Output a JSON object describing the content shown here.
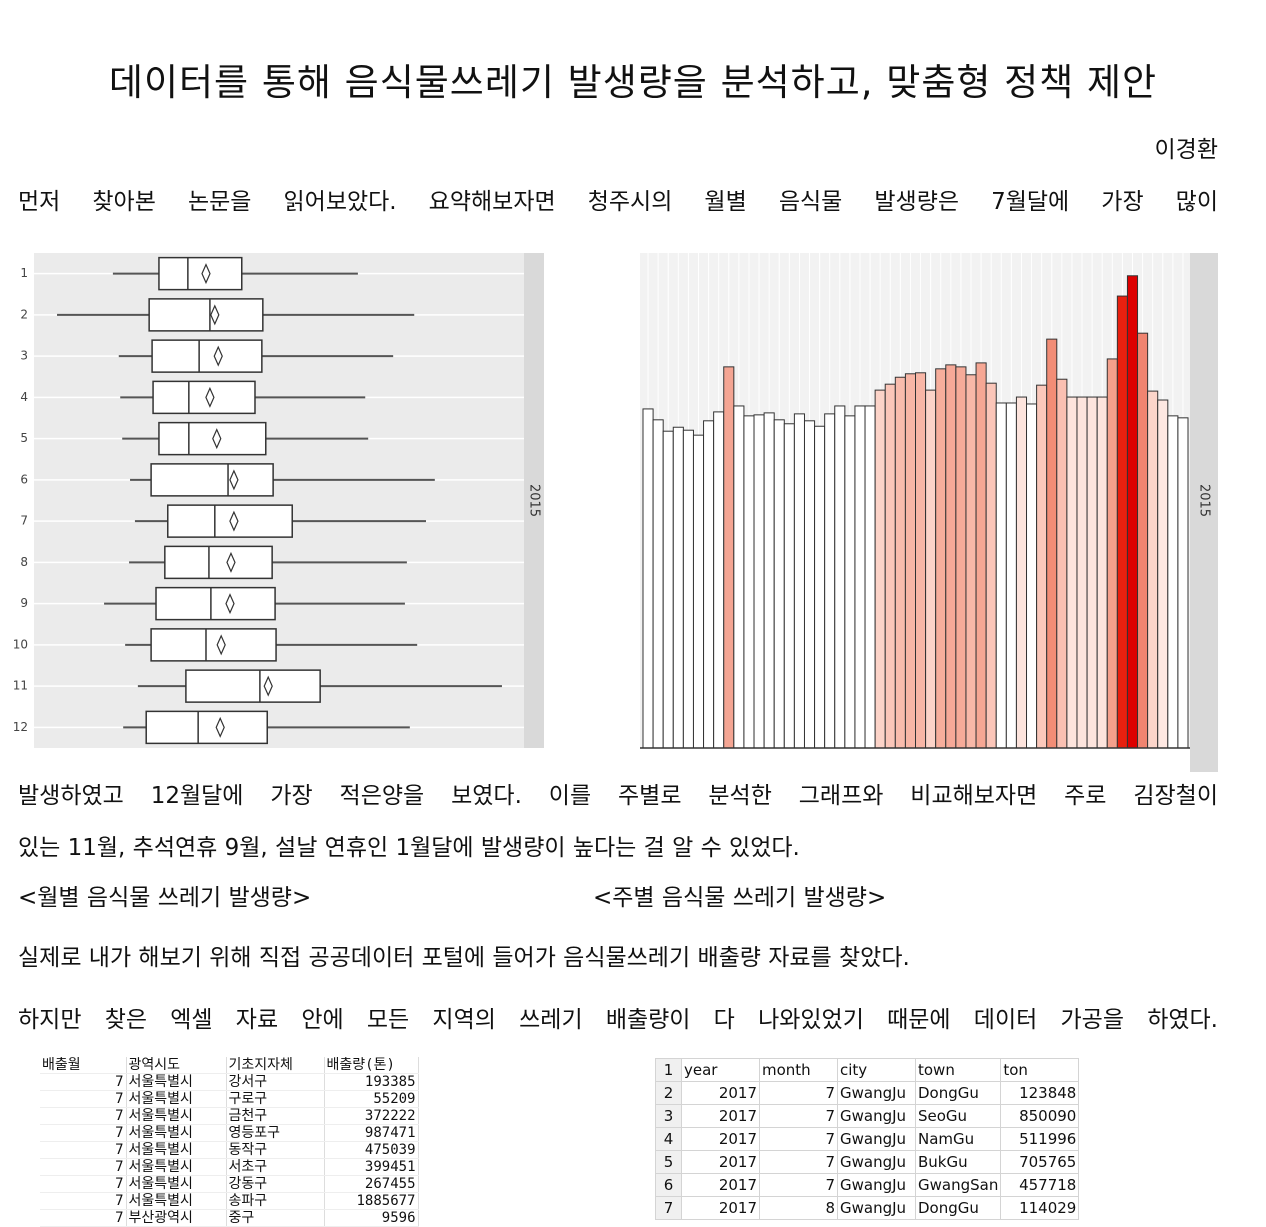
{
  "title": "데이터를 통해 음식물쓰레기 발생량을 분석하고, 맞춤형 정책 제안",
  "author": "이경환",
  "lines": [
    "먼저 찾아본 논문을 읽어보았다. 요약해보자면 청주시의 월별 음식물 발생량은 7월달에 가장 많이",
    "발생하였고 12월달에 가장 적은양을 보였다. 이를 주별로 분석한 그래프와 비교해보자면 주로 김장철이",
    "있는 11월, 추석연휴 9월, 설날 연휴인 1월달에 발생량이 높다는 걸 알 수 있었다.",
    "실제로 내가 해보기 위해 직접 공공데이터 포털에 들어가 음식물쓰레기 배출량 자료를 찾았다.",
    "하지만 찾은 엑셀 자료 안에 모든 지역의 쓰레기 배출량이 다 나와있었기 때문에 데이터 가공을 하였다."
  ],
  "captions": [
    "<월별 음식물 쓰레기 발생량>",
    "<주별 음식물 쓰레기 발생량>"
  ],
  "chart_data": [
    {
      "type": "box",
      "strip": "2015",
      "categories": [
        "1",
        "2",
        "3",
        "4",
        "5",
        "6",
        "7",
        "8",
        "9",
        "10",
        "11",
        "12"
      ],
      "xlim": [
        0,
        100
      ],
      "min": [
        16.1,
        4.7,
        17.3,
        17.6,
        18.0,
        19.6,
        20.6,
        19.4,
        14.3,
        18.6,
        21.2,
        18.2
      ],
      "q1": [
        25.5,
        23.5,
        24.1,
        24.3,
        25.5,
        23.9,
        27.3,
        26.7,
        24.9,
        23.9,
        31.0,
        22.9
      ],
      "median": [
        31.4,
        35.9,
        33.7,
        31.6,
        31.6,
        39.6,
        36.9,
        35.7,
        36.1,
        35.1,
        46.1,
        33.5
      ],
      "q3": [
        42.4,
        46.7,
        46.5,
        45.1,
        47.3,
        48.8,
        52.7,
        48.6,
        49.2,
        49.4,
        58.4,
        47.6
      ],
      "max": [
        66.1,
        77.6,
        73.3,
        67.6,
        68.2,
        81.8,
        80.0,
        76.1,
        75.7,
        78.2,
        95.5,
        76.7
      ],
      "mean": [
        35.1,
        36.9,
        37.6,
        35.9,
        37.3,
        40.8,
        40.8,
        40.2,
        40.0,
        38.2,
        47.8,
        38.0
      ],
      "color": "#ffffff"
    },
    {
      "type": "bar",
      "strip": "2015",
      "ylim": [
        0,
        100
      ],
      "values": [
        68.5,
        66.3,
        64.0,
        64.8,
        64.2,
        63.2,
        66.1,
        67.9,
        77.0,
        69.1,
        67.1,
        67.3,
        67.7,
        66.3,
        65.5,
        67.5,
        66.1,
        65.0,
        67.5,
        69.1,
        67.1,
        69.1,
        69.1,
        72.3,
        73.5,
        74.9,
        75.6,
        75.8,
        72.3,
        76.6,
        77.4,
        77.0,
        75.4,
        77.8,
        73.7,
        69.7,
        69.7,
        70.9,
        69.5,
        73.3,
        82.6,
        74.5,
        70.9,
        70.9,
        70.9,
        70.9,
        78.6,
        91.3,
        95.4,
        83.8,
        72.1,
        70.3,
        67.1,
        66.7
      ],
      "colors": [
        "#ffffff",
        "#ffffff",
        "#ffffff",
        "#ffffff",
        "#ffffff",
        "#ffffff",
        "#ffffff",
        "#ffffff",
        "#f4a593",
        "#ffffff",
        "#ffffff",
        "#ffffff",
        "#ffffff",
        "#ffffff",
        "#ffffff",
        "#ffffff",
        "#ffffff",
        "#ffffff",
        "#ffffff",
        "#ffffff",
        "#ffffff",
        "#ffffff",
        "#ffffff",
        "#fcd3c8",
        "#fbc6b9",
        "#f9bcad",
        "#f8b6a6",
        "#f8b6a6",
        "#fcd3c8",
        "#f7ae9c",
        "#f6a998",
        "#f6ab99",
        "#f8b8a8",
        "#f6a794",
        "#fbc6b9",
        "#ffffff",
        "#ffffff",
        "#fde4dd",
        "#ffffff",
        "#fbc8bb",
        "#f28d76",
        "#fac0b2",
        "#fde4dd",
        "#fde4dd",
        "#fde4dd",
        "#fde4dd",
        "#f5a08c",
        "#e8200f",
        "#dd0000",
        "#f08470",
        "#fcd5ca",
        "#fee8e2",
        "#ffffff",
        "#ffffff"
      ]
    }
  ],
  "tables": [
    {
      "header": [
        "배출월",
        "광역시도",
        "기초지자체",
        "배출량(톤)"
      ],
      "rows": [
        [
          7,
          "서울특별시",
          "강서구",
          193385
        ],
        [
          7,
          "서울특별시",
          "구로구",
          55209
        ],
        [
          7,
          "서울특별시",
          "금천구",
          372222
        ],
        [
          7,
          "서울특별시",
          "영등포구",
          987471
        ],
        [
          7,
          "서울특별시",
          "동작구",
          475039
        ],
        [
          7,
          "서울특별시",
          "서초구",
          399451
        ],
        [
          7,
          "서울특별시",
          "강동구",
          267455
        ],
        [
          7,
          "서울특별시",
          "송파구",
          1885677
        ],
        [
          7,
          "부산광역시",
          "중구",
          9596
        ]
      ]
    },
    {
      "row_numbers": [
        1,
        2,
        3,
        4,
        5,
        6,
        7
      ],
      "header": [
        "year",
        "month",
        "city",
        "town",
        "ton"
      ],
      "rows": [
        [
          2017,
          7,
          "GwangJu",
          "DongGu",
          123848
        ],
        [
          2017,
          7,
          "GwangJu",
          "SeoGu",
          850090
        ],
        [
          2017,
          7,
          "GwangJu",
          "NamGu",
          511996
        ],
        [
          2017,
          7,
          "GwangJu",
          "BukGu",
          705765
        ],
        [
          2017,
          7,
          "GwangJu",
          "GwangSan",
          457718
        ],
        [
          2017,
          8,
          "GwangJu",
          "DongGu",
          114029
        ]
      ]
    }
  ]
}
